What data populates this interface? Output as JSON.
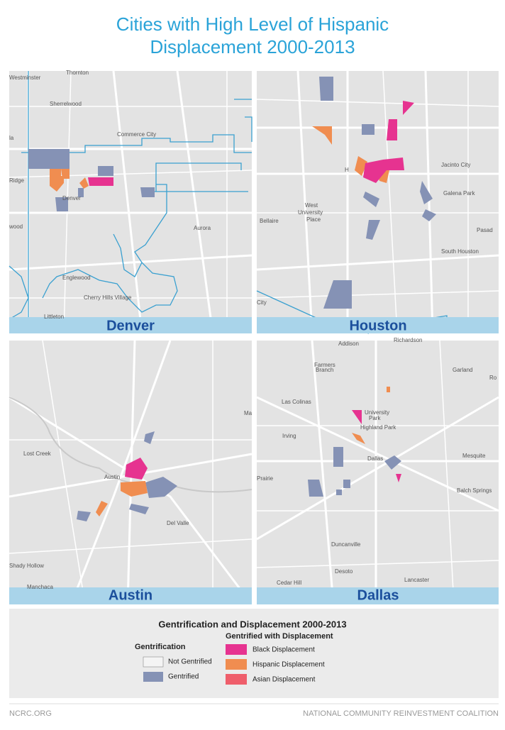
{
  "header": {
    "title": [
      "Cities with High Level of Hispanic",
      "Displacement 2000-2013"
    ]
  },
  "maps": [
    {
      "city": "Denver",
      "places": [
        "Westminster",
        "Thornton",
        "Sherrelwood",
        "la",
        "Commerce City",
        "Ridge",
        "Denver",
        "wood",
        "Aurora",
        "Englewood",
        "Cherry Hills Village",
        "Littleton"
      ]
    },
    {
      "city": "Houston",
      "places": [
        "Jacinto City",
        "Galena Park",
        "H",
        "West",
        "University",
        "Place",
        "Bellaire",
        "Pasad",
        "South Houston",
        "City"
      ]
    },
    {
      "city": "Austin",
      "places": [
        "Ma",
        "Lost Creek",
        "Austin",
        "Del Valle",
        "Shady Hollow",
        "Manchaca"
      ]
    },
    {
      "city": "Dallas",
      "places": [
        "Addison",
        "Richardson",
        "Farmers",
        "Branch",
        "Garland",
        "Ro",
        "Las Colinas",
        "University",
        "Park",
        "Highland Park",
        "Irving",
        "Dallas",
        "Mesquite",
        "Prairie",
        "Balch Springs",
        "Duncanville",
        "Desoto",
        "Lancaster",
        "Cedar Hill"
      ]
    }
  ],
  "legend": {
    "title": "Gentrification and Displacement 2000-2013",
    "gentrification": {
      "heading": "Gentrification",
      "items": [
        "Not Gentrified",
        "Gentrified"
      ]
    },
    "displacement": {
      "heading": "Gentrified with Displacement",
      "items": [
        "Black Displacement",
        "Hispanic Displacement",
        "Asian Displacement"
      ]
    }
  },
  "footer": {
    "left": "NCRC.ORG",
    "right": "NATIONAL COMMUNITY REINVESTMENT COALITION"
  }
}
